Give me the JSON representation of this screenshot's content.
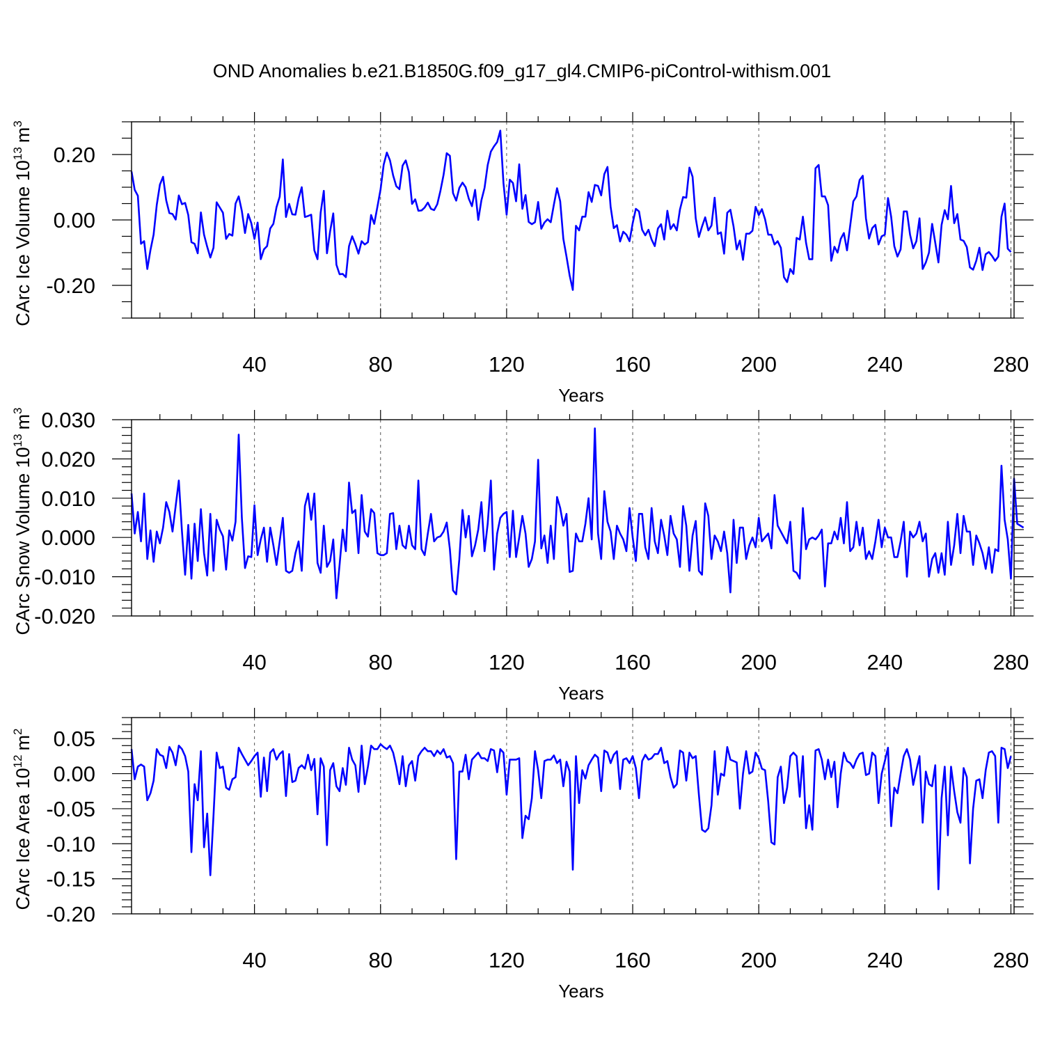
{
  "title": "OND Anomalies b.e21.B1850G.f09_g17_gl4.CMIP6-piControl-withism.001",
  "chart_data": [
    {
      "type": "line",
      "ylabel": {
        "text": "CArc Ice Volume 10",
        "sup": "13",
        "unit": "m",
        "unit_sup": "3"
      },
      "xlabel": "Years",
      "xlim": [
        1,
        281
      ],
      "ylim": [
        -0.3,
        0.3
      ],
      "xticks": [
        40,
        80,
        120,
        160,
        200,
        240,
        280
      ],
      "yticks": [
        -0.2,
        0.0,
        0.2
      ],
      "ytick_labels": [
        "-0.20",
        "0.00",
        "0.20"
      ],
      "yminor": 0.05,
      "color": "#0000ff",
      "grid_x": true,
      "series": [
        {
          "x_start": 1,
          "values": [
            0.148,
            0.092,
            0.074,
            -0.073,
            -0.065,
            -0.15,
            -0.092,
            -0.045,
            0.046,
            0.108,
            0.132,
            0.06,
            0.021,
            0.018,
            0.001,
            0.075,
            0.048,
            0.052,
            0.015,
            -0.068,
            -0.073,
            -0.102,
            0.023,
            -0.045,
            -0.082,
            -0.115,
            -0.085,
            0.054,
            0.038,
            0.022,
            -0.058,
            -0.043,
            -0.048,
            0.05,
            0.072,
            0.027,
            -0.04,
            0.018,
            -0.01,
            -0.058,
            -0.008,
            -0.12,
            -0.09,
            -0.08,
            -0.026,
            -0.012,
            0.039,
            0.071,
            0.185,
            0.009,
            0.049,
            0.017,
            0.016,
            0.066,
            0.1,
            0.009,
            0.012,
            0.016,
            -0.093,
            -0.12,
            0.022,
            0.089,
            -0.102,
            -0.035,
            0.02,
            -0.137,
            -0.166,
            -0.165,
            -0.175,
            -0.08,
            -0.05,
            -0.074,
            -0.103,
            -0.065,
            -0.075,
            -0.068,
            0.015,
            -0.012,
            0.04,
            0.093,
            0.169,
            0.206,
            0.182,
            0.136,
            0.103,
            0.094,
            0.166,
            0.182,
            0.146,
            0.049,
            0.063,
            0.028,
            0.029,
            0.038,
            0.053,
            0.034,
            0.03,
            0.048,
            0.089,
            0.138,
            0.204,
            0.196,
            0.082,
            0.059,
            0.098,
            0.114,
            0.1,
            0.065,
            0.042,
            0.092,
            0.0,
            0.06,
            0.098,
            0.168,
            0.209,
            0.225,
            0.238,
            0.273,
            0.113,
            0.016,
            0.123,
            0.113,
            0.057,
            0.17,
            0.034,
            0.076,
            -0.006,
            -0.013,
            -0.007,
            0.055,
            -0.027,
            -0.008,
            0.002,
            -0.007,
            0.047,
            0.097,
            0.057,
            -0.058,
            -0.112,
            -0.17,
            -0.214,
            -0.018,
            -0.032,
            0.01,
            0.01,
            0.085,
            0.055,
            0.107,
            0.104,
            0.075,
            0.14,
            0.162,
            0.04,
            -0.025,
            -0.016,
            -0.066,
            -0.036,
            -0.045,
            -0.065,
            -0.01,
            0.034,
            0.026,
            -0.03,
            -0.047,
            -0.03,
            -0.06,
            -0.08,
            -0.026,
            -0.013,
            -0.06,
            0.028,
            -0.028,
            -0.013,
            -0.032,
            0.032,
            0.07,
            0.068,
            0.16,
            0.132,
            0.005,
            -0.052,
            -0.02,
            0.008,
            -0.032,
            -0.017,
            0.068,
            -0.043,
            -0.038,
            -0.103,
            0.022,
            0.031,
            -0.02,
            -0.09,
            -0.063,
            -0.122,
            -0.042,
            -0.042,
            -0.033,
            0.04,
            0.015,
            0.033,
            0.002,
            -0.045,
            -0.045,
            -0.075,
            -0.065,
            -0.085,
            -0.175,
            -0.19,
            -0.15,
            -0.165,
            -0.055,
            -0.06,
            0.01,
            -0.07,
            -0.12,
            -0.12,
            0.158,
            0.168,
            0.072,
            0.072,
            0.045,
            -0.125,
            -0.082,
            -0.1,
            -0.058,
            -0.04,
            -0.093,
            -0.018,
            0.057,
            0.072,
            0.122,
            0.135,
            0.005,
            -0.057,
            -0.025,
            -0.015,
            -0.075,
            -0.05,
            -0.045,
            0.067,
            0.01,
            -0.08,
            -0.112,
            -0.09,
            0.026,
            0.026,
            -0.045,
            -0.087,
            -0.065,
            0.005,
            -0.15,
            -0.13,
            -0.1,
            -0.012,
            -0.07,
            -0.13,
            -0.015,
            0.03,
            0.002,
            0.104,
            -0.01,
            0.018,
            -0.06,
            -0.064,
            -0.083,
            -0.145,
            -0.152,
            -0.125,
            -0.085,
            -0.153,
            -0.105,
            -0.098,
            -0.11,
            -0.125,
            -0.112,
            0.01,
            0.05,
            -0.088,
            -0.098
          ]
        }
      ]
    },
    {
      "type": "line",
      "ylabel": {
        "text": "CArc Snow Volume 10",
        "sup": "13",
        "unit": "m",
        "unit_sup": "3"
      },
      "xlabel": "Years",
      "xlim": [
        1,
        281
      ],
      "ylim": [
        -0.02,
        0.03
      ],
      "xticks": [
        40,
        80,
        120,
        160,
        200,
        240,
        280
      ],
      "yticks": [
        -0.02,
        -0.01,
        0.0,
        0.01,
        0.02,
        0.03
      ],
      "ytick_labels": [
        "-0.020",
        "-0.010",
        "0.000",
        "0.010",
        "0.020",
        "0.030"
      ],
      "yminor": 0.002,
      "color": "#0000ff",
      "grid_x": true,
      "series": [
        {
          "x_start": 1,
          "values": [
            0.0112,
            0.001,
            0.0065,
            -0.001,
            0.0112,
            -0.0055,
            0.0018,
            -0.0062,
            0.0015,
            -0.0015,
            0.0025,
            0.009,
            0.0065,
            0.0015,
            0.008,
            0.0145,
            0.0015,
            -0.0095,
            0.0032,
            -0.0105,
            0.0035,
            -0.006,
            0.0072,
            -0.004,
            -0.0097,
            0.006,
            -0.0085,
            0.0045,
            0.002,
            0.0003,
            -0.0082,
            0.0018,
            -0.0008,
            0.004,
            0.0262,
            0.005,
            -0.0078,
            -0.0048,
            -0.005,
            0.0082,
            -0.0045,
            -0.0005,
            0.0025,
            -0.0062,
            0.0025,
            -0.002,
            -0.007,
            -0.001,
            0.005,
            -0.0085,
            -0.009,
            -0.0085,
            -0.004,
            -0.001,
            -0.0085,
            0.008,
            0.0112,
            0.0045,
            0.0112,
            -0.0065,
            -0.009,
            0.003,
            -0.0075,
            -0.006,
            -0.0005,
            -0.0155,
            -0.007,
            0.002,
            -0.0035,
            0.014,
            0.0062,
            0.007,
            -0.004,
            0.0108,
            0.0015,
            0.0002,
            0.0072,
            0.0062,
            -0.004,
            -0.0045,
            -0.0045,
            -0.004,
            0.006,
            0.0062,
            -0.003,
            0.003,
            -0.002,
            -0.0028,
            0.003,
            -0.002,
            -0.003,
            0.0145,
            -0.003,
            -0.0045,
            0.001,
            0.006,
            -0.001,
            0.0,
            0.0003,
            0.0015,
            0.0038,
            -0.003,
            -0.0135,
            -0.0145,
            -0.0055,
            0.007,
            0.0,
            0.0055,
            -0.0048,
            -0.002,
            0.002,
            0.009,
            -0.0035,
            0.0035,
            0.0145,
            -0.0082,
            0.001,
            0.005,
            0.006,
            0.0065,
            -0.005,
            0.0068,
            -0.005,
            0.0,
            0.0055,
            0.001,
            -0.0075,
            -0.0055,
            -0.001,
            0.0198,
            -0.0028,
            0.0005,
            -0.0065,
            0.003,
            -0.0055,
            0.0103,
            0.0075,
            0.003,
            0.006,
            -0.0088,
            -0.0085,
            0.001,
            -0.001,
            -0.001,
            0.0035,
            0.01,
            -0.0005,
            0.0278,
            0.001,
            -0.0055,
            0.0118,
            0.004,
            0.0015,
            -0.0055,
            0.003,
            0.001,
            -0.0005,
            -0.0035,
            0.0075,
            0.0,
            -0.006,
            0.006,
            0.006,
            -0.0025,
            -0.0055,
            0.0075,
            -0.001,
            -0.004,
            0.0045,
            0.0005,
            -0.0045,
            0.0055,
            0.001,
            -0.0005,
            -0.0075,
            0.008,
            0.003,
            -0.0085,
            0.0005,
            0.0042,
            -0.0085,
            -0.0095,
            0.0087,
            0.0055,
            -0.0055,
            0.0005,
            -0.001,
            -0.0035,
            0.0015,
            -0.004,
            -0.014,
            0.0045,
            -0.0065,
            0.0025,
            0.0025,
            -0.0055,
            -0.002,
            0.0,
            -0.0025,
            0.005,
            -0.001,
            0.0,
            0.001,
            -0.0028,
            0.0108,
            0.003,
            0.0015,
            0.0,
            -0.0015,
            0.004,
            -0.0085,
            -0.009,
            -0.0105,
            0.0075,
            -0.003,
            -0.0005,
            0.0,
            -0.0005,
            0.0005,
            0.002,
            -0.0125,
            -0.0015,
            -0.0015,
            0.0015,
            -0.0005,
            0.005,
            -0.0015,
            0.009,
            -0.0035,
            -0.0025,
            0.004,
            -0.002,
            0.0025,
            -0.0055,
            -0.0035,
            -0.0055,
            -0.001,
            0.0045,
            -0.0025,
            0.0025,
            0.0,
            0.0,
            -0.005,
            -0.005,
            -0.001,
            0.004,
            -0.01,
            0.0015,
            0.0,
            0.001,
            0.004,
            -0.001,
            0.001,
            -0.01,
            -0.0055,
            -0.004,
            -0.009,
            -0.004,
            -0.0095,
            0.004,
            -0.007,
            -0.002,
            0.006,
            -0.004,
            0.0055,
            0.0015,
            0.0015,
            -0.007,
            0.0005,
            -0.0015,
            -0.004,
            -0.008,
            -0.0025,
            -0.009,
            -0.003,
            -0.0035,
            0.0183,
            0.0045,
            -0.0005,
            -0.0105,
            0.015,
            0.0035,
            0.003,
            0.0025
          ]
        }
      ]
    },
    {
      "type": "line",
      "ylabel": {
        "text": "CArc Ice Area 10",
        "sup": "12",
        "unit": "m",
        "unit_sup": "2"
      },
      "xlabel": "Years",
      "xlim": [
        1,
        281
      ],
      "ylim": [
        -0.2,
        0.08
      ],
      "xticks": [
        40,
        80,
        120,
        160,
        200,
        240,
        280
      ],
      "yticks": [
        -0.2,
        -0.15,
        -0.1,
        -0.05,
        0.0,
        0.05
      ],
      "ytick_labels": [
        "-0.20",
        "-0.15",
        "-0.10",
        "-0.05",
        "0.00",
        "0.05"
      ],
      "yminor": 0.01,
      "color": "#0000ff",
      "grid_x": true,
      "series": [
        {
          "x_start": 1,
          "values": [
            0.035,
            -0.008,
            0.01,
            0.013,
            0.01,
            -0.038,
            -0.028,
            -0.01,
            0.035,
            0.027,
            0.025,
            0.008,
            0.038,
            0.03,
            0.012,
            0.04,
            0.035,
            0.025,
            0.003,
            -0.112,
            -0.015,
            -0.038,
            0.032,
            -0.105,
            -0.057,
            -0.145,
            -0.06,
            0.03,
            0.008,
            0.01,
            -0.02,
            -0.023,
            -0.008,
            -0.005,
            0.037,
            0.028,
            0.02,
            0.012,
            0.018,
            0.025,
            0.03,
            -0.033,
            0.023,
            -0.025,
            0.03,
            0.035,
            0.02,
            0.028,
            0.032,
            -0.032,
            0.028,
            -0.012,
            -0.01,
            0.008,
            0.012,
            0.007,
            0.027,
            0.005,
            0.021,
            -0.058,
            0.022,
            0.01,
            -0.102,
            0.005,
            0.015,
            -0.018,
            -0.025,
            0.008,
            -0.016,
            0.037,
            0.02,
            0.012,
            -0.026,
            0.04,
            -0.015,
            0.01,
            0.04,
            0.035,
            0.035,
            0.042,
            0.038,
            0.035,
            0.04,
            0.03,
            0.01,
            -0.015,
            0.025,
            -0.018,
            0.012,
            0.018,
            -0.01,
            0.025,
            0.032,
            0.037,
            0.032,
            0.032,
            0.025,
            0.033,
            0.028,
            0.035,
            0.023,
            0.025,
            0.015,
            -0.122,
            0.003,
            0.003,
            0.027,
            -0.008,
            0.02,
            0.025,
            0.03,
            0.022,
            0.022,
            0.018,
            0.035,
            0.033,
            0.002,
            0.035,
            0.03,
            -0.03,
            0.02,
            0.02,
            0.02,
            0.022,
            -0.092,
            -0.06,
            -0.065,
            -0.035,
            0.032,
            0.005,
            -0.035,
            0.018,
            0.02,
            0.02,
            0.026,
            0.015,
            0.02,
            -0.018,
            0.017,
            0.003,
            -0.137,
            0.025,
            -0.042,
            0.005,
            -0.007,
            0.012,
            0.02,
            0.027,
            0.023,
            -0.025,
            0.033,
            0.03,
            0.015,
            0.027,
            0.032,
            -0.022,
            0.02,
            0.022,
            0.015,
            0.025,
            0.008,
            -0.035,
            0.018,
            0.027,
            0.02,
            0.022,
            0.028,
            0.028,
            0.037,
            0.015,
            0.018,
            -0.005,
            -0.02,
            -0.015,
            0.033,
            0.03,
            -0.01,
            0.03,
            0.022,
            0.025,
            -0.03,
            -0.08,
            -0.083,
            -0.078,
            -0.045,
            0.032,
            -0.03,
            0.0,
            -0.003,
            0.038,
            0.02,
            0.018,
            0.016,
            -0.05,
            0.0,
            0.032,
            0.0,
            0.003,
            0.03,
            0.022,
            0.007,
            0.005,
            -0.04,
            -0.098,
            -0.101,
            -0.005,
            0.01,
            -0.042,
            -0.02,
            0.025,
            0.03,
            0.025,
            -0.033,
            0.025,
            -0.078,
            -0.045,
            -0.08,
            0.033,
            0.035,
            0.02,
            -0.008,
            0.02,
            -0.005,
            0.017,
            -0.048,
            0.0,
            0.03,
            0.018,
            0.015,
            0.008,
            0.02,
            0.028,
            0.03,
            -0.002,
            0.0,
            0.03,
            0.025,
            -0.042,
            0.0,
            0.018,
            0.037,
            -0.075,
            -0.02,
            -0.028,
            0.0,
            0.025,
            0.035,
            0.02,
            -0.016,
            0.005,
            0.025,
            -0.07,
            0.003,
            -0.015,
            -0.018,
            0.012,
            -0.165,
            -0.035,
            0.01,
            -0.088,
            0.01,
            -0.025,
            -0.055,
            -0.07,
            0.008,
            -0.005,
            -0.128,
            -0.05,
            -0.01,
            -0.008,
            -0.035,
            0.005,
            0.03,
            0.032,
            0.025,
            -0.07,
            0.037,
            0.035,
            0.008,
            0.025
          ]
        }
      ]
    }
  ]
}
